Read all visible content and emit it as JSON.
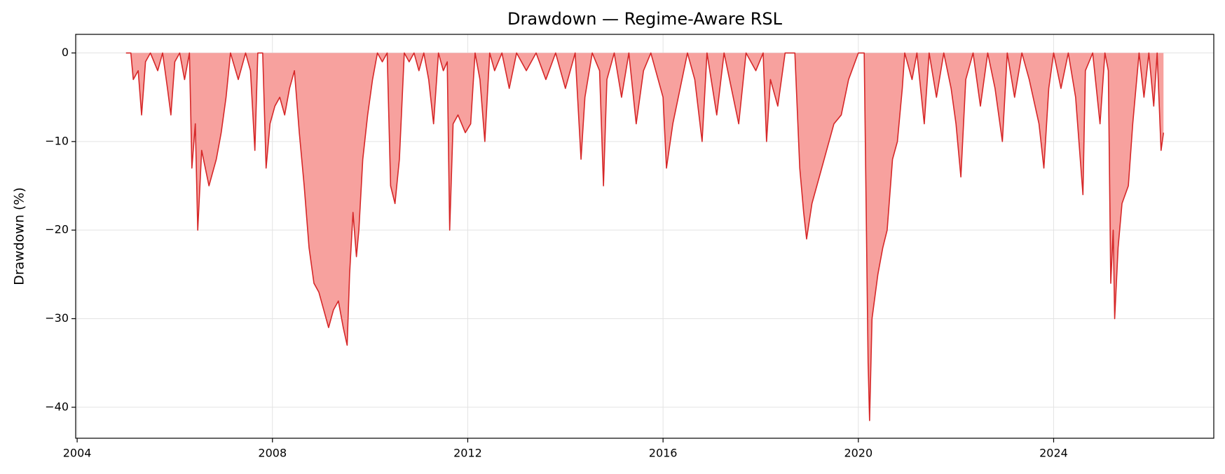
{
  "chart_data": {
    "type": "area",
    "title": "Drawdown — Regime-Aware RSL",
    "ylabel": "Drawdown (%)",
    "color": "#d62728",
    "fill_color": "#f7a19e",
    "grid": true,
    "xlim": [
      2003.97,
      2027.28
    ],
    "ylim": [
      -43.5,
      2.1
    ],
    "xticks": [
      2004,
      2008,
      2012,
      2016,
      2020,
      2024
    ],
    "yticks": [
      {
        "value": -40,
        "label": "−40"
      },
      {
        "value": -30,
        "label": "−30"
      },
      {
        "value": -20,
        "label": "−20"
      },
      {
        "value": -10,
        "label": "−10"
      },
      0
    ],
    "x": [
      2005.0,
      2005.1,
      2005.15,
      2005.25,
      2005.32,
      2005.4,
      2005.5,
      2005.65,
      2005.75,
      2005.85,
      2005.92,
      2006.0,
      2006.1,
      2006.2,
      2006.3,
      2006.35,
      2006.42,
      2006.47,
      2006.55,
      2006.7,
      2006.85,
      2006.95,
      2007.05,
      2007.14,
      2007.3,
      2007.45,
      2007.55,
      2007.64,
      2007.7,
      2007.8,
      2007.87,
      2007.95,
      2008.05,
      2008.15,
      2008.25,
      2008.35,
      2008.45,
      2008.55,
      2008.65,
      2008.75,
      2008.85,
      2008.95,
      2009.05,
      2009.15,
      2009.25,
      2009.35,
      2009.45,
      2009.53,
      2009.58,
      2009.65,
      2009.72,
      2009.77,
      2009.85,
      2009.95,
      2010.05,
      2010.15,
      2010.25,
      2010.35,
      2010.42,
      2010.51,
      2010.6,
      2010.7,
      2010.8,
      2010.9,
      2011.0,
      2011.1,
      2011.2,
      2011.3,
      2011.4,
      2011.5,
      2011.58,
      2011.63,
      2011.7,
      2011.8,
      2011.95,
      2012.06,
      2012.15,
      2012.25,
      2012.35,
      2012.45,
      2012.55,
      2012.7,
      2012.85,
      2013.0,
      2013.2,
      2013.4,
      2013.6,
      2013.8,
      2014.0,
      2014.2,
      2014.32,
      2014.4,
      2014.55,
      2014.7,
      2014.78,
      2014.85,
      2015.0,
      2015.15,
      2015.3,
      2015.45,
      2015.6,
      2015.75,
      2016.0,
      2016.07,
      2016.2,
      2016.35,
      2016.5,
      2016.65,
      2016.8,
      2016.9,
      2017.1,
      2017.25,
      2017.4,
      2017.55,
      2017.7,
      2017.9,
      2018.05,
      2018.12,
      2018.2,
      2018.35,
      2018.5,
      2018.7,
      2018.8,
      2018.88,
      2018.94,
      2019.05,
      2019.2,
      2019.35,
      2019.5,
      2019.65,
      2019.8,
      2020.0,
      2020.12,
      2020.2,
      2020.23,
      2020.28,
      2020.4,
      2020.5,
      2020.59,
      2020.7,
      2020.8,
      2020.9,
      2020.95,
      2021.1,
      2021.2,
      2021.35,
      2021.45,
      2021.6,
      2021.75,
      2021.9,
      2022.0,
      2022.1,
      2022.2,
      2022.35,
      2022.5,
      2022.65,
      2022.8,
      2022.95,
      2023.05,
      2023.2,
      2023.35,
      2023.5,
      2023.7,
      2023.8,
      2023.9,
      2024.0,
      2024.15,
      2024.3,
      2024.45,
      2024.6,
      2024.65,
      2024.8,
      2024.95,
      2025.05,
      2025.12,
      2025.17,
      2025.22,
      2025.25,
      2025.32,
      2025.4,
      2025.53,
      2025.62,
      2025.75,
      2025.85,
      2025.95,
      2026.05,
      2026.12,
      2026.2,
      2026.25
    ],
    "values": [
      0,
      0,
      -3,
      -2,
      -7,
      -1,
      0,
      -2,
      0,
      -4,
      -7,
      -1,
      0,
      -3,
      0,
      -13,
      -8,
      -20,
      -11,
      -15,
      -12,
      -9,
      -5,
      0,
      -3,
      0,
      -2,
      -11,
      0,
      0,
      -13,
      -8,
      -6,
      -5,
      -7,
      -4,
      -2,
      -9,
      -15,
      -22,
      -26,
      -27,
      -29,
      -31,
      -29,
      -28,
      -31,
      -33,
      -25,
      -18,
      -23,
      -20,
      -12,
      -7,
      -3,
      0,
      -1,
      0,
      -15,
      -17,
      -12,
      0,
      -1,
      0,
      -2,
      0,
      -3,
      -8,
      0,
      -2,
      -1,
      -20,
      -8,
      -7,
      -9,
      -8,
      0,
      -3,
      -10,
      0,
      -2,
      0,
      -4,
      0,
      -2,
      0,
      -3,
      0,
      -4,
      0,
      -12,
      -5,
      0,
      -2,
      -15,
      -3,
      0,
      -5,
      0,
      -8,
      -2,
      0,
      -5,
      -13,
      -8,
      -4,
      0,
      -3,
      -10,
      0,
      -7,
      0,
      -4,
      -8,
      0,
      -2,
      0,
      -10,
      -3,
      -6,
      0,
      0,
      -13,
      -18,
      -21,
      -17,
      -14,
      -11,
      -8,
      -7,
      -3,
      0,
      0,
      -35,
      -41.5,
      -30,
      -25,
      -22,
      -20,
      -12,
      -10,
      -4,
      0,
      -3,
      0,
      -8,
      0,
      -5,
      0,
      -4,
      -8,
      -14,
      -3,
      0,
      -6,
      0,
      -4,
      -10,
      0,
      -5,
      0,
      -3,
      -8,
      -13,
      -4,
      0,
      -4,
      0,
      -5,
      -16,
      -2,
      0,
      -8,
      0,
      -2,
      -26,
      -20,
      -30,
      -22,
      -17,
      -15,
      -8,
      0,
      -5,
      0,
      -6,
      0,
      -11,
      -9
    ]
  }
}
